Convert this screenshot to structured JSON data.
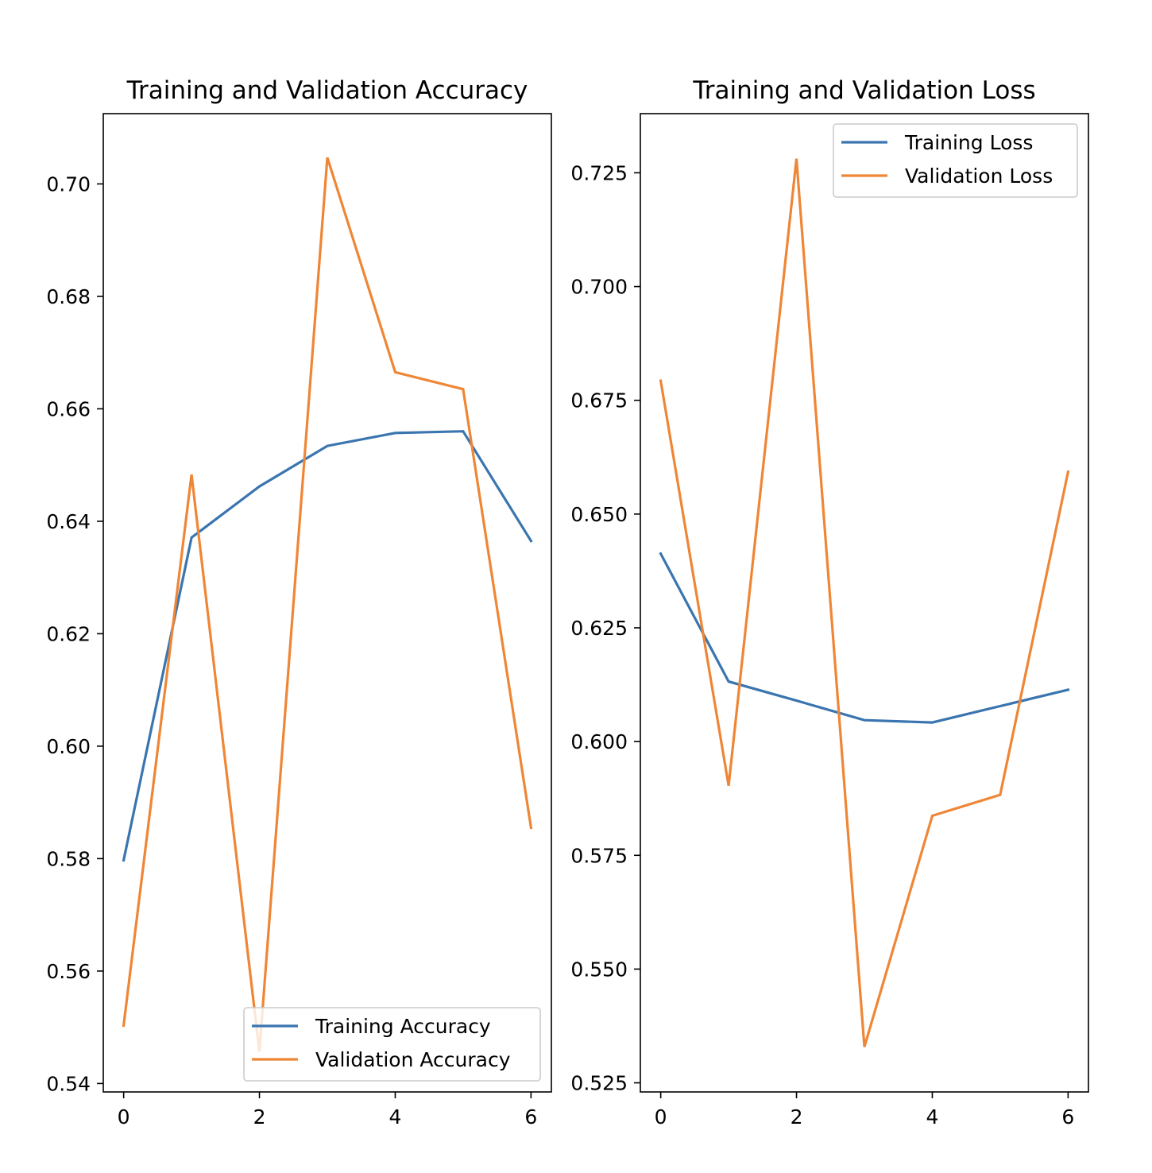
{
  "chart_data": [
    {
      "type": "line",
      "title": "Training and Validation Accuracy",
      "xlabel": "",
      "ylabel": "",
      "xlim": [
        -0.3,
        6.3
      ],
      "ylim": [
        0.5385,
        0.7125
      ],
      "xticks": [
        0,
        2,
        4,
        6
      ],
      "xtick_labels": [
        "0",
        "2",
        "4",
        "6"
      ],
      "yticks": [
        0.54,
        0.56,
        0.58,
        0.6,
        0.62,
        0.64,
        0.66,
        0.68,
        0.7
      ],
      "ytick_labels": [
        "0.54",
        "0.56",
        "0.58",
        "0.60",
        "0.62",
        "0.64",
        "0.66",
        "0.68",
        "0.70"
      ],
      "grid": false,
      "legend_position": "lower-right",
      "x": [
        0,
        1,
        2,
        3,
        4,
        5,
        6
      ],
      "series": [
        {
          "name": "Training Accuracy",
          "color": "#3a75af",
          "values": [
            0.5797,
            0.6371,
            0.6462,
            0.6534,
            0.6557,
            0.656,
            0.6365
          ]
        },
        {
          "name": "Validation Accuracy",
          "color": "#ef8636",
          "values": [
            0.5503,
            0.6483,
            0.5457,
            0.7047,
            0.6665,
            0.6635,
            0.5855
          ]
        }
      ]
    },
    {
      "type": "line",
      "title": "Training and Validation Loss",
      "xlabel": "",
      "ylabel": "",
      "xlim": [
        -0.3,
        6.3
      ],
      "ylim": [
        0.523,
        0.738
      ],
      "xticks": [
        0,
        2,
        4,
        6
      ],
      "xtick_labels": [
        "0",
        "2",
        "4",
        "6"
      ],
      "yticks": [
        0.525,
        0.55,
        0.575,
        0.6,
        0.625,
        0.65,
        0.675,
        0.7,
        0.725
      ],
      "ytick_labels": [
        "0.525",
        "0.550",
        "0.575",
        "0.600",
        "0.625",
        "0.650",
        "0.675",
        "0.700",
        "0.725"
      ],
      "grid": false,
      "legend_position": "upper-right",
      "x": [
        0,
        1,
        2,
        3,
        4,
        5,
        6
      ],
      "series": [
        {
          "name": "Training Loss",
          "color": "#3a75af",
          "values": [
            0.6413,
            0.6132,
            0.609,
            0.6047,
            0.6042,
            0.6078,
            0.6114
          ]
        },
        {
          "name": "Validation Loss",
          "color": "#ef8636",
          "values": [
            0.6793,
            0.5903,
            0.7281,
            0.5329,
            0.5837,
            0.5883,
            0.6593
          ]
        }
      ]
    }
  ]
}
